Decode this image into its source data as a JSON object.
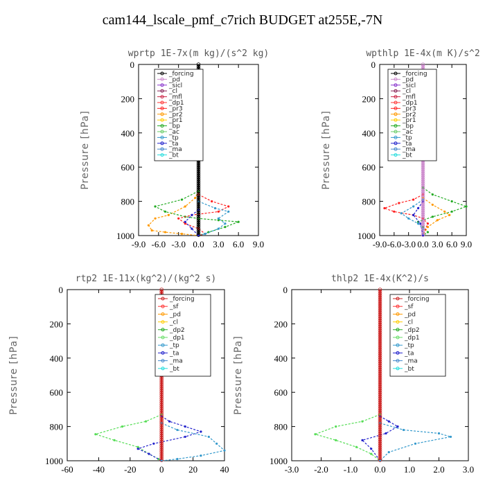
{
  "title": "cam144_lscale_pmf_c7rich  BUDGET at255E,-7N",
  "chart_data": [
    {
      "type": "line",
      "title": "wprtp  1E-7x(m kg)/(s^2 kg)",
      "ylabel": "Pressure [hPa]",
      "xlim": [
        -9,
        9
      ],
      "ylim": [
        1000,
        0
      ],
      "xticks": [
        "-9.0",
        "-6.0",
        "-3.0",
        "0.0",
        "3.0",
        "6.0",
        "9.0"
      ],
      "yticks": [
        "0",
        "200",
        "400",
        "600",
        "800",
        "1000"
      ],
      "legend": [
        "_forcing",
        "_pd",
        "_sicl",
        "_cl",
        "_mfl",
        "_dp1",
        "_pr3",
        "_pr2",
        "_pr1",
        "_bp",
        "_ac",
        "_tp",
        "_ta",
        "_ma",
        "_bt"
      ],
      "series": [
        {
          "name": "_forcing",
          "color": "#000000",
          "points": [
            [
              0,
              0
            ],
            [
              0,
              1000
            ]
          ]
        },
        {
          "name": "_pr2",
          "color": "#ff9900",
          "points": [
            [
              0,
              740
            ],
            [
              -0.5,
              780
            ],
            [
              -2,
              830
            ],
            [
              -4.5,
              880
            ],
            [
              -6.5,
              900
            ],
            [
              -7.5,
              940
            ],
            [
              -7,
              970
            ],
            [
              -5,
              980
            ],
            [
              -2.5,
              990
            ],
            [
              0,
              1000
            ]
          ]
        },
        {
          "name": "_bp",
          "color": "#22aa22",
          "points": [
            [
              0,
              740
            ],
            [
              -2.5,
              790
            ],
            [
              -6.5,
              830
            ],
            [
              -5,
              860
            ],
            [
              -2,
              890
            ],
            [
              0,
              900
            ],
            [
              3,
              910
            ],
            [
              6,
              920
            ],
            [
              4,
              950
            ],
            [
              1.5,
              980
            ],
            [
              0,
              1000
            ]
          ]
        },
        {
          "name": "_pr3",
          "color": "#ff2222",
          "points": [
            [
              0,
              760
            ],
            [
              2,
              800
            ],
            [
              4.5,
              830
            ],
            [
              3,
              860
            ],
            [
              -1,
              880
            ],
            [
              -3,
              900
            ],
            [
              -2,
              930
            ],
            [
              0,
              960
            ],
            [
              1,
              990
            ],
            [
              0,
              1000
            ]
          ]
        },
        {
          "name": "_tp",
          "color": "#3399cc",
          "points": [
            [
              0,
              800
            ],
            [
              2.5,
              840
            ],
            [
              4.5,
              860
            ],
            [
              3,
              900
            ],
            [
              4,
              930
            ],
            [
              3,
              960
            ],
            [
              1,
              990
            ],
            [
              0,
              1000
            ]
          ]
        },
        {
          "name": "_ta",
          "color": "#2222cc",
          "points": [
            [
              0,
              850
            ],
            [
              -1,
              880
            ],
            [
              -2,
              920
            ],
            [
              -1,
              960
            ],
            [
              0,
              1000
            ]
          ]
        }
      ]
    },
    {
      "type": "line",
      "title": "wpthlp  1E-4x(m K)/s^2",
      "ylabel": "Pressure [hPa]",
      "xlim": [
        -9,
        9
      ],
      "ylim": [
        1000,
        0
      ],
      "xticks": [
        "-9.0",
        "-6.0",
        "-3.0",
        "0.0",
        "3.0",
        "6.0",
        "9.0"
      ],
      "yticks": [
        "0",
        "200",
        "400",
        "600",
        "800",
        "1000"
      ],
      "legend": [
        "_forcing",
        "_pd",
        "_sicl",
        "_cl",
        "_mfl",
        "_dp1",
        "_pr3",
        "_pr2",
        "_pr1",
        "_bp",
        "_ac",
        "_tp",
        "_ta",
        "_ma",
        "_bt"
      ],
      "series": [
        {
          "name": "_forcing",
          "color": "#cc88cc",
          "points": [
            [
              0,
              0
            ],
            [
              0,
              1000
            ]
          ]
        },
        {
          "name": "_bp",
          "color": "#22aa22",
          "points": [
            [
              0,
              720
            ],
            [
              2,
              760
            ],
            [
              6,
              800
            ],
            [
              9,
              830
            ],
            [
              6,
              860
            ],
            [
              2,
              890
            ],
            [
              -1,
              920
            ],
            [
              0,
              950
            ],
            [
              1,
              980
            ],
            [
              0,
              1000
            ]
          ]
        },
        {
          "name": "_pr3",
          "color": "#ff2222",
          "points": [
            [
              0,
              760
            ],
            [
              -2,
              790
            ],
            [
              -5,
              810
            ],
            [
              -8,
              840
            ],
            [
              -6,
              860
            ],
            [
              -2,
              880
            ],
            [
              0,
              900
            ],
            [
              1,
              930
            ],
            [
              0,
              1000
            ]
          ]
        },
        {
          "name": "_pr2",
          "color": "#ff9900",
          "points": [
            [
              0,
              780
            ],
            [
              2,
              820
            ],
            [
              4.5,
              860
            ],
            [
              5.5,
              880
            ],
            [
              3,
              910
            ],
            [
              1,
              950
            ],
            [
              0,
              1000
            ]
          ]
        },
        {
          "name": "_tp",
          "color": "#3399cc",
          "points": [
            [
              0,
              790
            ],
            [
              -2,
              830
            ],
            [
              -4.5,
              870
            ],
            [
              -3,
              900
            ],
            [
              -1,
              930
            ],
            [
              0,
              960
            ],
            [
              0,
              1000
            ]
          ]
        },
        {
          "name": "_ta",
          "color": "#2222cc",
          "points": [
            [
              0,
              800
            ],
            [
              -1,
              840
            ],
            [
              -2,
              880
            ],
            [
              -0.5,
              930
            ],
            [
              0,
              1000
            ]
          ]
        }
      ]
    },
    {
      "type": "line",
      "title": "rtp2  1E-11x(kg^2)/(kg^2 s)",
      "ylabel": "Pressure [hPa]",
      "xlim": [
        -60,
        40
      ],
      "ylim": [
        1000,
        0
      ],
      "xticks": [
        "-60",
        "-40",
        "-20",
        "0",
        "20",
        "40"
      ],
      "yticks": [
        "0",
        "200",
        "400",
        "600",
        "800",
        "1000"
      ],
      "legend": [
        "_forcing",
        "_sf",
        "_pd",
        "_cl",
        "_dp2",
        "_dp1",
        "_tp",
        "_ta",
        "_ma",
        "_bt"
      ],
      "series": [
        {
          "name": "_forcing",
          "color": "#cc2222",
          "points": [
            [
              0,
              0
            ],
            [
              0,
              1000
            ]
          ]
        },
        {
          "name": "_dp1",
          "color": "#55dd55",
          "points": [
            [
              0,
              730
            ],
            [
              -10,
              770
            ],
            [
              -25,
              800
            ],
            [
              -42,
              845
            ],
            [
              -30,
              880
            ],
            [
              -15,
              920
            ],
            [
              -8,
              960
            ],
            [
              -2,
              990
            ],
            [
              0,
              1000
            ]
          ]
        },
        {
          "name": "_ta",
          "color": "#2222cc",
          "points": [
            [
              0,
              740
            ],
            [
              5,
              770
            ],
            [
              15,
              800
            ],
            [
              25,
              830
            ],
            [
              15,
              860
            ],
            [
              -5,
              900
            ],
            [
              -15,
              930
            ],
            [
              -8,
              960
            ],
            [
              0,
              1000
            ]
          ]
        },
        {
          "name": "_tp",
          "color": "#3399cc",
          "points": [
            [
              0,
              780
            ],
            [
              10,
              820
            ],
            [
              30,
              860
            ],
            [
              35,
              900
            ],
            [
              40,
              940
            ],
            [
              25,
              970
            ],
            [
              10,
              990
            ],
            [
              0,
              1000
            ]
          ]
        }
      ]
    },
    {
      "type": "line",
      "title": "thlp2  1E-4x(K^2)/s",
      "ylabel": "Pressure [hPa]",
      "xlim": [
        -3,
        3
      ],
      "ylim": [
        1000,
        0
      ],
      "xticks": [
        "-3.0",
        "-2.0",
        "-1.0",
        "0.0",
        "1.0",
        "2.0",
        "3.0"
      ],
      "yticks": [
        "0",
        "200",
        "400",
        "600",
        "800",
        "1000"
      ],
      "legend": [
        "_forcing",
        "_sf",
        "_pd",
        "_cl",
        "_dp2",
        "_dp1",
        "_tp",
        "_ta",
        "_ma",
        "_bt"
      ],
      "series": [
        {
          "name": "_forcing",
          "color": "#cc2222",
          "points": [
            [
              0,
              0
            ],
            [
              0,
              1000
            ]
          ]
        },
        {
          "name": "_dp1",
          "color": "#55dd55",
          "points": [
            [
              0,
              730
            ],
            [
              -0.6,
              770
            ],
            [
              -1.5,
              800
            ],
            [
              -2.2,
              845
            ],
            [
              -1.5,
              880
            ],
            [
              -0.8,
              920
            ],
            [
              -0.3,
              960
            ],
            [
              0,
              1000
            ]
          ]
        },
        {
          "name": "_ta",
          "color": "#2222cc",
          "points": [
            [
              0,
              740
            ],
            [
              0.3,
              770
            ],
            [
              0.6,
              800
            ],
            [
              0.2,
              840
            ],
            [
              -0.6,
              880
            ],
            [
              -0.3,
              930
            ],
            [
              0,
              1000
            ]
          ]
        },
        {
          "name": "_tp",
          "color": "#3399cc",
          "points": [
            [
              0,
              780
            ],
            [
              0.8,
              820
            ],
            [
              2,
              840
            ],
            [
              2.4,
              860
            ],
            [
              1.2,
              900
            ],
            [
              0.3,
              950
            ],
            [
              0,
              1000
            ]
          ]
        }
      ]
    }
  ]
}
